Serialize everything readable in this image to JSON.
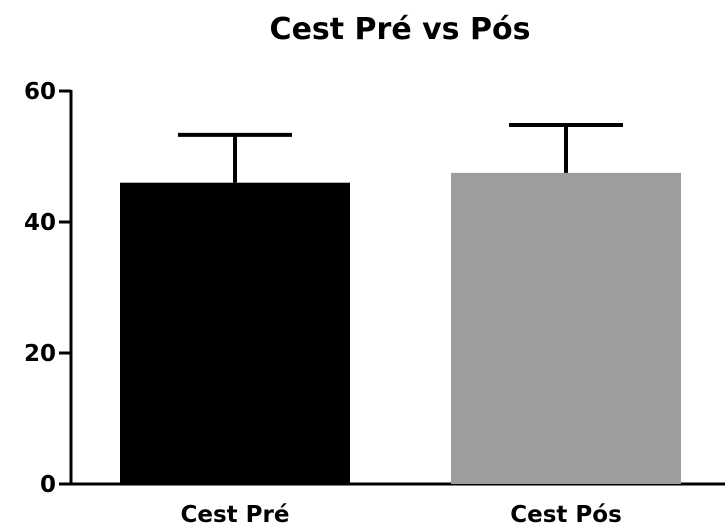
{
  "chart_data": {
    "type": "bar",
    "title": "Cest Pré vs Pós",
    "xlabel": "",
    "ylabel": "",
    "categories": [
      "Cest Pré",
      "Cest Pós"
    ],
    "values": [
      46,
      47.5
    ],
    "error_upper": [
      53.3,
      54.8
    ],
    "colors": [
      "#000000",
      "#9d9da0"
    ],
    "ylim": [
      0,
      60
    ],
    "yticks": [
      0,
      20,
      40,
      60
    ],
    "ytick_labels": [
      "0",
      "20",
      "40",
      "60"
    ],
    "grid": false
  }
}
